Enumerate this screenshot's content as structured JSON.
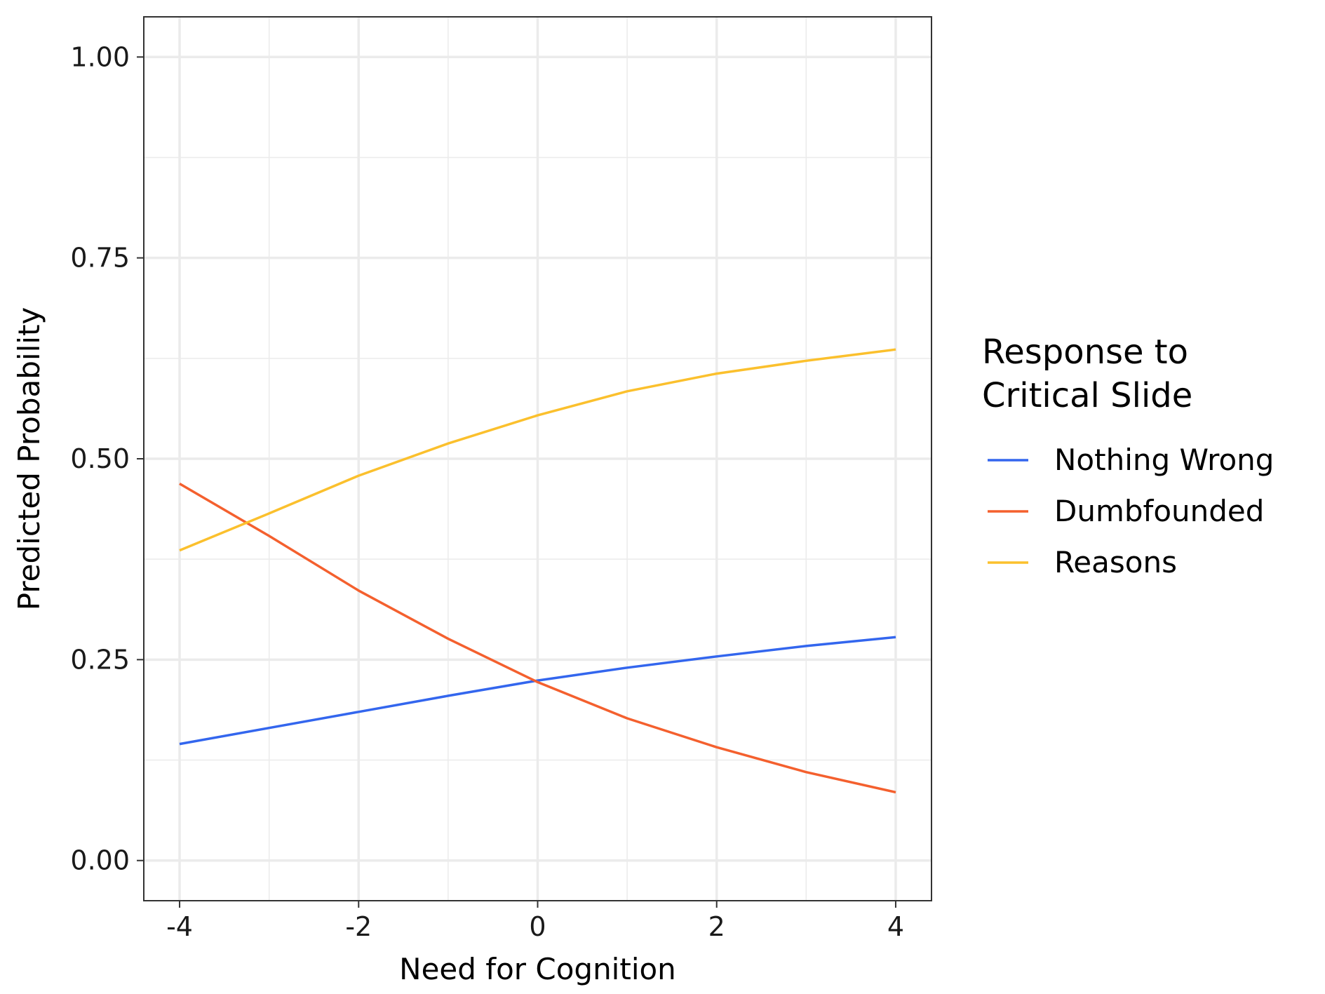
{
  "chart_data": {
    "type": "line",
    "xlabel": "Need for Cognition",
    "ylabel": "Predicted Probability",
    "xlim": [
      -4.4,
      4.4
    ],
    "ylim": [
      -0.05,
      1.05
    ],
    "x_ticks": [
      -4,
      -2,
      0,
      2,
      4
    ],
    "x_tick_labels": [
      "-4",
      "-2",
      "0",
      "2",
      "4"
    ],
    "y_ticks": [
      0,
      0.25,
      0.5,
      0.75,
      1.0
    ],
    "y_tick_labels": [
      "0.00",
      "0.25",
      "0.50",
      "0.75",
      "1.00"
    ],
    "x_minor_grid": [
      -3,
      -1,
      1,
      3
    ],
    "y_minor_grid": [
      0.125,
      0.375,
      0.625,
      0.875
    ],
    "grid": true,
    "legend": {
      "title_lines": [
        "Response to",
        "Critical Slide"
      ],
      "placement": "right"
    },
    "x": [
      -4,
      -3,
      -2,
      -1,
      0,
      1,
      2,
      3,
      4
    ],
    "series": [
      {
        "name": "Nothing Wrong",
        "color": "#3366ee",
        "values": [
          0.145,
          0.165,
          0.185,
          0.205,
          0.224,
          0.24,
          0.254,
          0.267,
          0.278
        ]
      },
      {
        "name": "Dumbfounded",
        "color": "#f4602e",
        "values": [
          0.469,
          0.404,
          0.336,
          0.276,
          0.222,
          0.177,
          0.141,
          0.11,
          0.085
        ]
      },
      {
        "name": "Reasons",
        "color": "#fbc02d",
        "values": [
          0.386,
          0.432,
          0.479,
          0.519,
          0.554,
          0.584,
          0.606,
          0.622,
          0.636
        ]
      }
    ]
  }
}
